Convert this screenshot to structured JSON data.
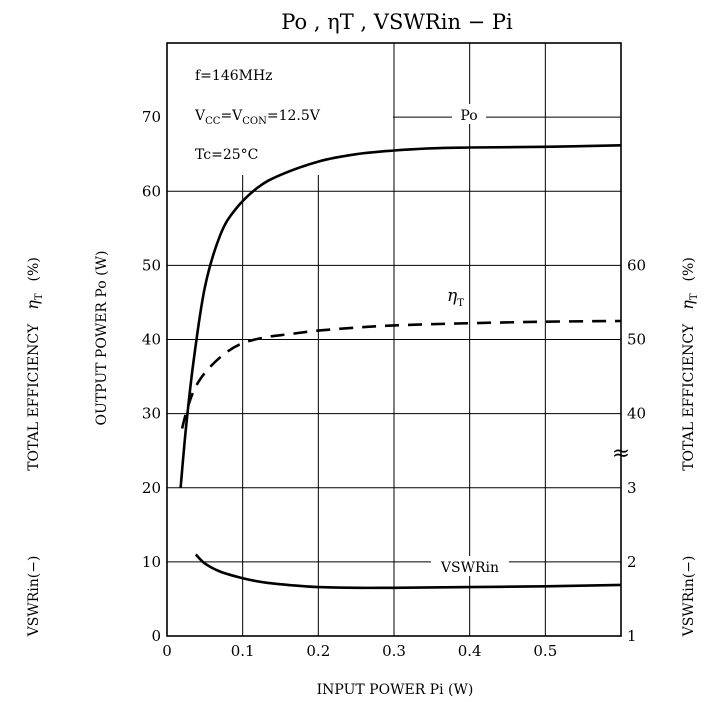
{
  "chart_data": {
    "type": "line",
    "title": "Po , ηT , VSWRin − Pi",
    "xlabel": "INPUT POWER   Pi   (W)",
    "xlim": [
      0,
      0.6
    ],
    "x_ticks": [
      "0",
      "0.1",
      "0.2",
      "0.3",
      "0.4",
      "0.5"
    ],
    "left_axis": {
      "ylim": [
        0,
        80
      ],
      "ticks": [
        "0",
        "10",
        "20",
        "30",
        "40",
        "50",
        "60",
        "70"
      ],
      "labels": {
        "output_power": "OUTPUT POWER   Po   (W)",
        "efficiency": "TOTAL EFFICIENCY",
        "efficiency_symbol": "η",
        "efficiency_sub": "T",
        "efficiency_unit": "(%)",
        "vswr": "VSWRin(−)"
      }
    },
    "right_axis": {
      "efficiency_ticks": [
        "40",
        "50",
        "60"
      ],
      "vswr_ticks": [
        "1",
        "2",
        "3"
      ],
      "break_mark": "≈",
      "labels": {
        "efficiency": "TOTAL EFFICIENCY",
        "efficiency_symbol": "η",
        "efficiency_sub": "T",
        "efficiency_unit": "(%)",
        "vswr": "VSWRin(−)"
      }
    },
    "conditions": {
      "freq": "f=146MHz",
      "vcc_a": "V",
      "vcc_a_sub": "CC",
      "vcc_b": "=V",
      "vcc_b_sub": "CON",
      "vcc_c": "=12.5V",
      "tc": "Tc=25°C"
    },
    "series": [
      {
        "name": "Po",
        "style": "solid",
        "x": [
          0.018,
          0.025,
          0.035,
          0.05,
          0.07,
          0.09,
          0.12,
          0.15,
          0.2,
          0.25,
          0.3,
          0.35,
          0.4,
          0.5,
          0.6
        ],
        "y": [
          20,
          28,
          37,
          47,
          54,
          57.5,
          60.5,
          62.2,
          64,
          65,
          65.5,
          65.8,
          65.9,
          66,
          66.2
        ]
      },
      {
        "name": "ηT",
        "name_symbol": "η",
        "name_sub": "T",
        "style": "dashed",
        "x": [
          0.02,
          0.025,
          0.035,
          0.05,
          0.075,
          0.1,
          0.13,
          0.16,
          0.2,
          0.25,
          0.3,
          0.4,
          0.5,
          0.6
        ],
        "y": [
          38,
          40,
          43,
          45.5,
          48,
          49.5,
          50.3,
          50.7,
          51.2,
          51.6,
          51.9,
          52.2,
          52.4,
          52.5
        ]
      },
      {
        "name": "VSWRin",
        "style": "solid",
        "x": [
          0.038,
          0.05,
          0.07,
          0.1,
          0.13,
          0.17,
          0.2,
          0.25,
          0.3,
          0.4,
          0.5,
          0.6
        ],
        "y": [
          2.1,
          1.98,
          1.87,
          1.78,
          1.72,
          1.68,
          1.66,
          1.65,
          1.65,
          1.66,
          1.67,
          1.69
        ]
      }
    ],
    "grid": true,
    "legend": "inline labels"
  }
}
